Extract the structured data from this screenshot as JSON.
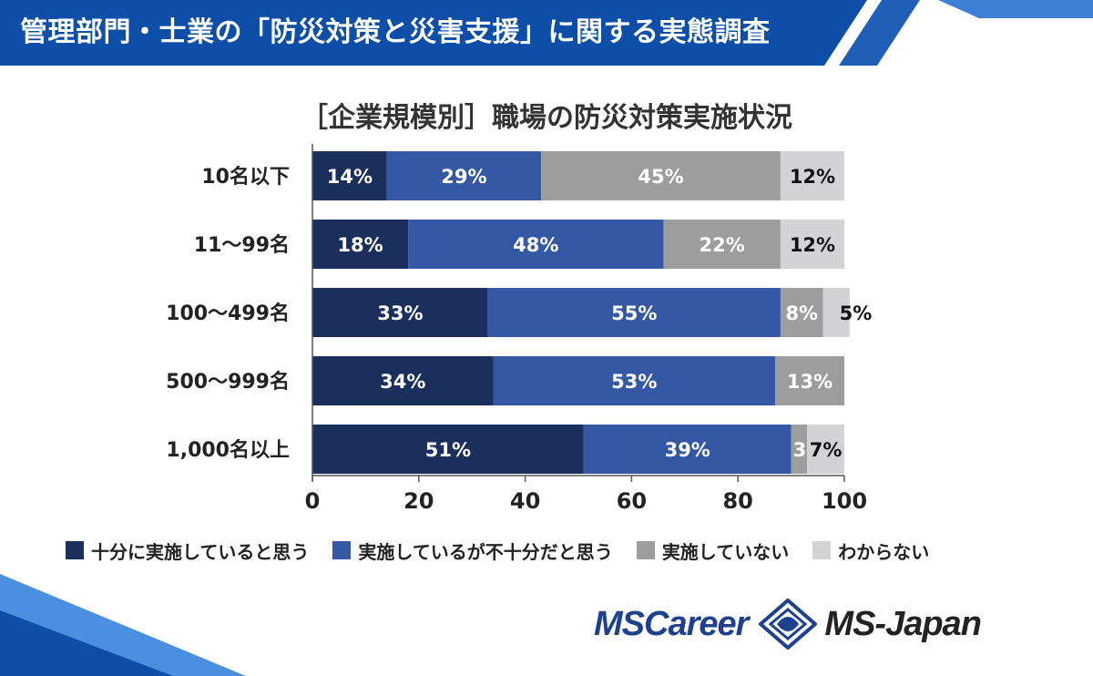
{
  "header": {
    "title": "管理部門・士業の「防災対策と災害支援」に関する実態調査"
  },
  "chart_data": {
    "type": "bar",
    "orientation": "horizontal",
    "stacked": true,
    "title": "［企業規模別］職場の防災対策実施状況",
    "categories": [
      "10名以下",
      "11～99名",
      "100～499名",
      "500～999名",
      "1,000名以上"
    ],
    "series": [
      {
        "name": "十分に実施していると思う",
        "color": "#1b2f5c",
        "values": [
          14,
          18,
          33,
          34,
          51
        ],
        "labels": [
          "14%",
          "18%",
          "33%",
          "34%",
          "51%"
        ]
      },
      {
        "name": "実施しているが不十分だと思う",
        "color": "#3458a4",
        "values": [
          29,
          48,
          55,
          53,
          39
        ],
        "labels": [
          "29%",
          "48%",
          "55%",
          "53%",
          "39%"
        ]
      },
      {
        "name": "実施していない",
        "color": "#9d9d9d",
        "values": [
          45,
          22,
          8,
          13,
          3
        ],
        "labels": [
          "45%",
          "22%",
          "8%",
          "13%",
          "3%"
        ]
      },
      {
        "name": "わからない",
        "color": "#d3d3d6",
        "values": [
          12,
          12,
          5,
          0,
          7
        ],
        "labels": [
          "12%",
          "12%",
          "5%",
          "",
          "7%"
        ]
      }
    ],
    "xlim": [
      0,
      100
    ],
    "xticks": [
      "0",
      "20",
      "40",
      "60",
      "80",
      "100"
    ],
    "grid": false,
    "legend_position": "bottom"
  },
  "logos": {
    "left": "MSCareer",
    "right": "MS-Japan"
  },
  "colors": {
    "banner": "#0d4fa8",
    "banner_stripe": "#2f74d0",
    "accent_light": "#4a8fe0"
  }
}
